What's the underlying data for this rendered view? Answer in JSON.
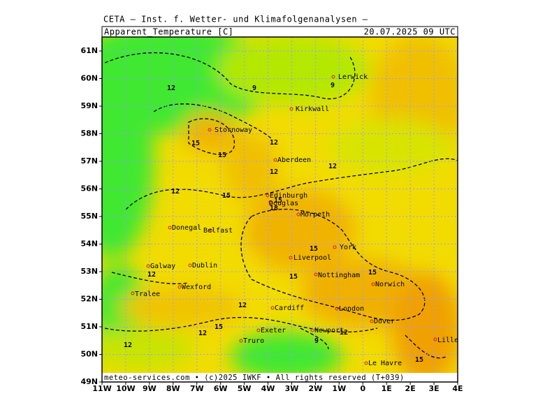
{
  "header": {
    "institute": "CETA — Inst. f. Wetter- und Klimafolgenanalysen —",
    "variable": "Apparent_Temperature [C]",
    "valid_time": "20.07.2025 09 UTC"
  },
  "footer": "meteo-services.com • (c)2025 IWKF • All rights reserved (T+039)",
  "x_axis": {
    "labels": [
      "11W",
      "10W",
      "9W",
      "8W",
      "7W",
      "6W",
      "5W",
      "4W",
      "3W",
      "2W",
      "1W",
      "0",
      "1E",
      "2E",
      "3E",
      "4E"
    ]
  },
  "y_axis": {
    "labels": [
      "49N",
      "50N",
      "51N",
      "52N",
      "53N",
      "54N",
      "55N",
      "56N",
      "57N",
      "58N",
      "59N",
      "60N",
      "61N"
    ]
  },
  "cities": [
    "Lerwick",
    "Kirkwall",
    "Stornoway",
    "Aberdeen",
    "Edinburgh",
    "Douglas",
    "Morpeth",
    "Donegal",
    "Belfast",
    "York",
    "Galway",
    "Dublin",
    "Liverpool",
    "Nottingham",
    "Norwich",
    "Wexford",
    "Tralee",
    "Cardiff",
    "London",
    "Dover",
    "Exeter",
    "Newport",
    "Truro",
    "Lille",
    "Le Havre"
  ],
  "contour_labels": [
    12,
    9,
    9,
    12,
    15,
    15,
    12,
    12,
    12,
    15,
    15,
    18,
    15,
    12,
    15,
    15,
    12,
    15,
    12,
    12,
    9,
    12,
    15
  ]
}
